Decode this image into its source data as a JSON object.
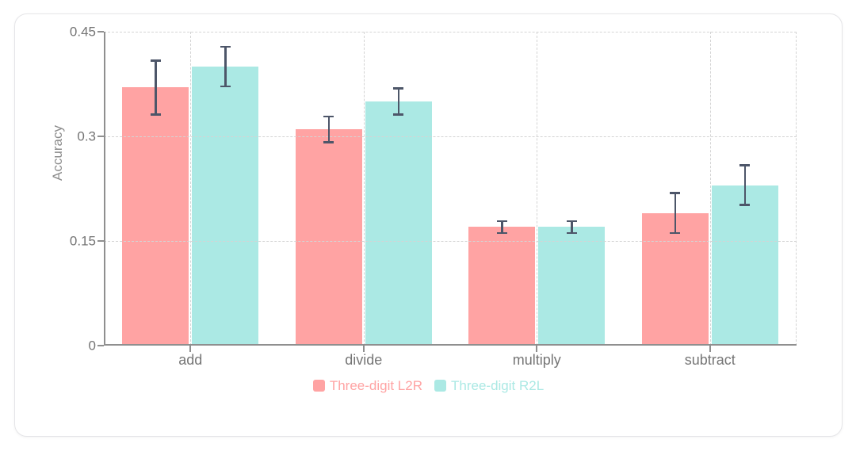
{
  "chart_data": {
    "type": "bar",
    "title": "",
    "ylabel": "Accuracy",
    "xlabel": "",
    "categories": [
      "add",
      "divide",
      "multiply",
      "subtract"
    ],
    "series": [
      {
        "name": "Three-digit L2R",
        "color": "#FFA3A3",
        "values": [
          0.37,
          0.31,
          0.17,
          0.19
        ],
        "error_bars": [
          0.04,
          0.02,
          0.01,
          0.03
        ]
      },
      {
        "name": "Three-digit R2L",
        "color": "#ABE9E4",
        "values": [
          0.4,
          0.35,
          0.17,
          0.23
        ],
        "error_bars": [
          0.03,
          0.02,
          0.01,
          0.03
        ]
      }
    ],
    "ylim": [
      0,
      0.45
    ],
    "yticks": [
      {
        "value": 0.0,
        "label": "0"
      },
      {
        "value": 0.15,
        "label": "0.15"
      },
      {
        "value": 0.3,
        "label": "0.3"
      },
      {
        "value": 0.45,
        "label": "0.45"
      }
    ],
    "grid": true,
    "legend_position": "bottom",
    "styles": {
      "error_bar_color": "#4D5669",
      "axis_color": "#8F8F8F",
      "gridline_color": "#D4D4D4",
      "tick_label_color": "#757575",
      "axis_title_color": "#8C8C8C",
      "card_background": "#FFFFFF",
      "card_border": "#E5E5E8"
    }
  }
}
